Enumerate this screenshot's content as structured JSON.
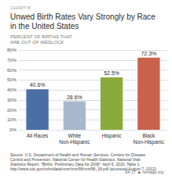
{
  "chart_data": {
    "type": "bar",
    "title": "Unwed Birth Rates Vary Strongly by Race\nin the United States",
    "subtitle": "PERCENT OF BIRTHS THAT\nARE OUT OF WEDLOCK",
    "annotations": [
      "CHART 8",
      "Source: U.S. Department of Health and Human Services, Centers for Disease\nControl and Prevention, National Center for Health Statistics, National Vital\nStatistics Report, \"Births: Preliminary Data for 2008,\" April 6, 2010, Table 1,\nhttp://www.cdc.gov/nchs/data/nvsr/nvsr58/nvsr58_16.pdf (accessed August 7, 2012).",
      "SR 17  ■  heritage.org"
    ],
    "categories": [
      "All Races",
      "White\nNon-Hispanic",
      "Hispanic",
      "Black\nNon-Hispanic"
    ],
    "values": [
      40.6,
      28.6,
      52.5,
      72.3
    ],
    "value_labels": [
      "40.6%",
      "28.6%",
      "52.5%",
      "72.3%"
    ],
    "data_labels": true,
    "colors": [
      "#4a6fa5",
      "#a8b8cc",
      "#8aab3c",
      "#c8624a"
    ],
    "ylim": [
      0,
      80
    ],
    "yticks": [
      {
        "value": 0,
        "label": "0%"
      },
      {
        "value": 10,
        "label": "10%"
      },
      {
        "value": 20,
        "label": "20%"
      },
      {
        "value": 30,
        "label": "30%"
      },
      {
        "value": 40,
        "label": "40%"
      },
      {
        "value": 50,
        "label": "50%"
      },
      {
        "value": 60,
        "label": "60%"
      },
      {
        "value": 70,
        "label": "70%"
      },
      {
        "value": 80,
        "label": "80%"
      }
    ],
    "grid": true
  }
}
